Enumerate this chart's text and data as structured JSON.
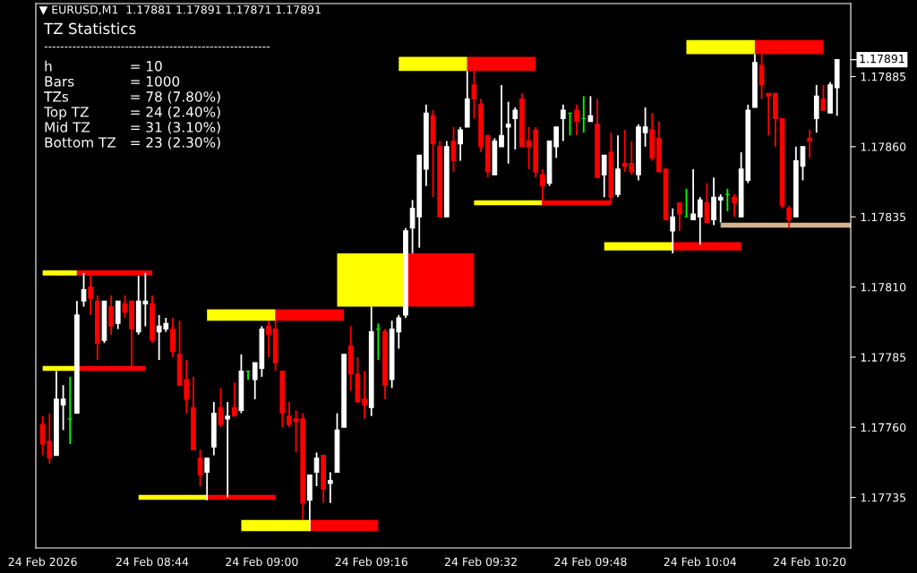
{
  "chart_data": {
    "type": "candlestick",
    "title": "▼ EURUSD,M1  1.17881 1.17891 1.17871 1.17891",
    "annotations": [
      "TZ Statistics",
      "--------------------------------------------------------",
      "h",
      "= 10",
      "Bars",
      "= 1000",
      "TZs",
      "= 78 (7.80%)",
      "Top TZ",
      "= 24 (2.40%)",
      "Mid TZ",
      "= 31 (3.10%)",
      "Bottom TZ",
      "= 23 (2.30%)"
    ],
    "x": [
      "2026-02-24T08:28",
      "2026-02-24T08:29",
      "2026-02-24T08:30",
      "2026-02-24T08:31",
      "2026-02-24T08:32",
      "2026-02-24T08:33",
      "2026-02-24T08:34",
      "2026-02-24T08:35",
      "2026-02-24T08:36",
      "2026-02-24T08:37",
      "2026-02-24T08:38",
      "2026-02-24T08:39",
      "2026-02-24T08:40",
      "2026-02-24T08:41",
      "2026-02-24T08:42",
      "2026-02-24T08:43",
      "2026-02-24T08:44",
      "2026-02-24T08:45",
      "2026-02-24T08:46",
      "2026-02-24T08:47",
      "2026-02-24T08:48",
      "2026-02-24T08:49",
      "2026-02-24T08:50",
      "2026-02-24T08:51",
      "2026-02-24T08:52",
      "2026-02-24T08:53",
      "2026-02-24T08:54",
      "2026-02-24T08:55",
      "2026-02-24T08:56",
      "2026-02-24T08:57",
      "2026-02-24T08:58",
      "2026-02-24T08:59",
      "2026-02-24T09:00",
      "2026-02-24T09:01",
      "2026-02-24T09:02",
      "2026-02-24T09:03",
      "2026-02-24T09:04",
      "2026-02-24T09:05",
      "2026-02-24T09:06",
      "2026-02-24T09:07",
      "2026-02-24T09:08",
      "2026-02-24T09:09",
      "2026-02-24T09:10",
      "2026-02-24T09:11",
      "2026-02-24T09:12",
      "2026-02-24T09:13",
      "2026-02-24T09:14",
      "2026-02-24T09:15",
      "2026-02-24T09:16",
      "2026-02-24T09:17",
      "2026-02-24T09:18",
      "2026-02-24T09:19",
      "2026-02-24T09:20",
      "2026-02-24T09:21",
      "2026-02-24T09:22",
      "2026-02-24T09:23",
      "2026-02-24T09:24",
      "2026-02-24T09:25",
      "2026-02-24T09:26",
      "2026-02-24T09:27",
      "2026-02-24T09:28",
      "2026-02-24T09:29",
      "2026-02-24T09:30",
      "2026-02-24T09:31",
      "2026-02-24T09:32",
      "2026-02-24T09:33",
      "2026-02-24T09:34",
      "2026-02-24T09:35",
      "2026-02-24T09:36",
      "2026-02-24T09:37",
      "2026-02-24T09:38",
      "2026-02-24T09:39",
      "2026-02-24T09:40",
      "2026-02-24T09:41",
      "2026-02-24T09:42",
      "2026-02-24T09:43",
      "2026-02-24T09:44",
      "2026-02-24T09:45",
      "2026-02-24T09:46",
      "2026-02-24T09:47",
      "2026-02-24T09:48",
      "2026-02-24T09:49",
      "2026-02-24T09:50",
      "2026-02-24T09:51",
      "2026-02-24T09:52",
      "2026-02-24T09:53",
      "2026-02-24T09:54",
      "2026-02-24T09:55",
      "2026-02-24T09:56",
      "2026-02-24T09:57",
      "2026-02-24T09:58",
      "2026-02-24T09:59",
      "2026-02-24T10:00",
      "2026-02-24T10:01",
      "2026-02-24T10:02",
      "2026-02-24T10:03",
      "2026-02-24T10:04",
      "2026-02-24T10:05",
      "2026-02-24T10:06",
      "2026-02-24T10:07",
      "2026-02-24T10:08",
      "2026-02-24T10:09",
      "2026-02-24T10:10",
      "2026-02-24T10:11",
      "2026-02-24T10:12",
      "2026-02-24T10:13",
      "2026-02-24T10:14",
      "2026-02-24T10:15",
      "2026-02-24T10:16",
      "2026-02-24T10:17",
      "2026-02-24T10:18",
      "2026-02-24T10:19",
      "2026-02-24T10:20",
      "2026-02-24T10:21",
      "2026-02-24T10:22",
      "2026-02-24T10:23",
      "2026-02-24T10:24"
    ],
    "ohlc": [
      [
        1.17761,
        1.17764,
        1.1775,
        1.17754
      ],
      [
        1.17755,
        1.17765,
        1.17747,
        1.17749
      ],
      [
        1.1775,
        1.1778,
        1.1775,
        1.1777
      ],
      [
        1.17768,
        1.17775,
        1.17759,
        1.1777
      ],
      [
        1.17763,
        1.17778,
        1.17754,
        1.17763
      ],
      [
        1.17765,
        1.17805,
        1.17765,
        1.178
      ],
      [
        1.17805,
        1.17815,
        1.17803,
        1.17809
      ],
      [
        1.1781,
        1.17814,
        1.178,
        1.17806
      ],
      [
        1.17805,
        1.17807,
        1.17784,
        1.1779
      ],
      [
        1.17791,
        1.17805,
        1.1779,
        1.17805
      ],
      [
        1.17803,
        1.17807,
        1.17793,
        1.17796
      ],
      [
        1.17797,
        1.17805,
        1.17795,
        1.17805
      ],
      [
        1.17804,
        1.17807,
        1.17799,
        1.17801
      ],
      [
        1.17805,
        1.17805,
        1.17781,
        1.17795
      ],
      [
        1.17794,
        1.17814,
        1.17793,
        1.17805
      ],
      [
        1.17804,
        1.17815,
        1.17796,
        1.17805
      ],
      [
        1.17804,
        1.17807,
        1.1779,
        1.17791
      ],
      [
        1.17794,
        1.178,
        1.17784,
        1.17796
      ],
      [
        1.17795,
        1.17799,
        1.17794,
        1.17797
      ],
      [
        1.17795,
        1.17799,
        1.17785,
        1.17787
      ],
      [
        1.17786,
        1.17798,
        1.17775,
        1.17775
      ],
      [
        1.17777,
        1.17784,
        1.17765,
        1.1777
      ],
      [
        1.17767,
        1.17778,
        1.17752,
        1.17752
      ],
      [
        1.17749,
        1.17752,
        1.17739,
        1.17743
      ],
      [
        1.17744,
        1.17749,
        1.17734,
        1.17749
      ],
      [
        1.17753,
        1.17769,
        1.1775,
        1.17765
      ],
      [
        1.17767,
        1.17774,
        1.1776,
        1.17761
      ],
      [
        1.17763,
        1.17769,
        1.17735,
        1.17764
      ],
      [
        1.17767,
        1.17776,
        1.17764,
        1.17764
      ],
      [
        1.17766,
        1.17786,
        1.17765,
        1.1778
      ],
      [
        1.1778,
        1.1778,
        1.17777,
        1.1778
      ],
      [
        1.17777,
        1.17783,
        1.1777,
        1.17783
      ],
      [
        1.17781,
        1.17796,
        1.17778,
        1.17795
      ],
      [
        1.17796,
        1.17798,
        1.17785,
        1.17793
      ],
      [
        1.17795,
        1.17798,
        1.1778,
        1.17783
      ],
      [
        1.1778,
        1.1778,
        1.1776,
        1.17765
      ],
      [
        1.17764,
        1.17769,
        1.1776,
        1.17761
      ],
      [
        1.17763,
        1.17766,
        1.17751,
        1.17762
      ],
      [
        1.17763,
        1.17765,
        1.17727,
        1.17733
      ],
      [
        1.17734,
        1.17743,
        1.17723,
        1.17743
      ],
      [
        1.17744,
        1.17751,
        1.17739,
        1.17749
      ],
      [
        1.1775,
        1.1775,
        1.17733,
        1.17738
      ],
      [
        1.1774,
        1.17744,
        1.17733,
        1.17741
      ],
      [
        1.17744,
        1.17765,
        1.17744,
        1.17759
      ],
      [
        1.1776,
        1.17786,
        1.1776,
        1.17786
      ],
      [
        1.17789,
        1.17796,
        1.17773,
        1.17779
      ],
      [
        1.17779,
        1.17785,
        1.17769,
        1.17769
      ],
      [
        1.1777,
        1.1778,
        1.17763,
        1.17768
      ],
      [
        1.17767,
        1.17803,
        1.17764,
        1.17794
      ],
      [
        1.17795,
        1.17797,
        1.17784,
        1.17795
      ],
      [
        1.17794,
        1.17795,
        1.1777,
        1.17775
      ],
      [
        1.17777,
        1.17798,
        1.17774,
        1.17795
      ],
      [
        1.17794,
        1.178,
        1.17788,
        1.17799
      ],
      [
        1.178,
        1.17831,
        1.17799,
        1.1783
      ],
      [
        1.17831,
        1.17841,
        1.17822,
        1.17838
      ],
      [
        1.17835,
        1.17857,
        1.17824,
        1.17857
      ],
      [
        1.17852,
        1.17875,
        1.17846,
        1.17872
      ],
      [
        1.17871,
        1.17873,
        1.17842,
        1.17861
      ],
      [
        1.1786,
        1.17862,
        1.17835,
        1.17835
      ],
      [
        1.17835,
        1.17862,
        1.17835,
        1.1786
      ],
      [
        1.17862,
        1.17867,
        1.17851,
        1.17855
      ],
      [
        1.17861,
        1.17867,
        1.17855,
        1.17866
      ],
      [
        1.17867,
        1.17887,
        1.17867,
        1.17877
      ],
      [
        1.17882,
        1.17887,
        1.1787,
        1.17877
      ],
      [
        1.17875,
        1.17877,
        1.17858,
        1.1786
      ],
      [
        1.17864,
        1.17864,
        1.17849,
        1.17851
      ],
      [
        1.1785,
        1.17863,
        1.1785,
        1.17862
      ],
      [
        1.1786,
        1.17882,
        1.1786,
        1.17864
      ],
      [
        1.17867,
        1.17876,
        1.17854,
        1.17868
      ],
      [
        1.1787,
        1.17874,
        1.17859,
        1.17873
      ],
      [
        1.17877,
        1.17879,
        1.1786,
        1.1786
      ],
      [
        1.17862,
        1.17867,
        1.17852,
        1.1786
      ],
      [
        1.17866,
        1.17867,
        1.17849,
        1.17851
      ],
      [
        1.1785,
        1.17852,
        1.17839,
        1.17846
      ],
      [
        1.17847,
        1.17862,
        1.17846,
        1.17862
      ],
      [
        1.1786,
        1.17867,
        1.17856,
        1.17867
      ],
      [
        1.1787,
        1.17875,
        1.17862,
        1.17873
      ],
      [
        1.17872,
        1.17872,
        1.17864,
        1.17872
      ],
      [
        1.17873,
        1.17875,
        1.17864,
        1.17869
      ],
      [
        1.1787,
        1.17878,
        1.17865,
        1.1787
      ],
      [
        1.17869,
        1.17878,
        1.17869,
        1.17871
      ],
      [
        1.17868,
        1.17877,
        1.17849,
        1.17849
      ],
      [
        1.1785,
        1.17857,
        1.17842,
        1.17857
      ],
      [
        1.17858,
        1.17865,
        1.1784,
        1.17842
      ],
      [
        1.17843,
        1.17864,
        1.17842,
        1.17852
      ],
      [
        1.17854,
        1.17866,
        1.17851,
        1.17853
      ],
      [
        1.17854,
        1.17862,
        1.1785,
        1.17851
      ],
      [
        1.1785,
        1.17868,
        1.17848,
        1.17867
      ],
      [
        1.17865,
        1.17874,
        1.1786,
        1.17867
      ],
      [
        1.17866,
        1.17872,
        1.17855,
        1.17856
      ],
      [
        1.17863,
        1.17869,
        1.17851,
        1.17851
      ],
      [
        1.17852,
        1.17852,
        1.17834,
        1.17834
      ],
      [
        1.1783,
        1.17838,
        1.17822,
        1.17835
      ],
      [
        1.1784,
        1.1784,
        1.1783,
        1.17836
      ],
      [
        1.17835,
        1.17845,
        1.17835,
        1.17835
      ],
      [
        1.17834,
        1.17852,
        1.17834,
        1.17836
      ],
      [
        1.17835,
        1.17842,
        1.17825,
        1.17841
      ],
      [
        1.1784,
        1.17847,
        1.17833,
        1.17833
      ],
      [
        1.17834,
        1.17849,
        1.17832,
        1.17842
      ],
      [
        1.17841,
        1.17843,
        1.17833,
        1.17842
      ],
      [
        1.17843,
        1.17845,
        1.17837,
        1.17843
      ],
      [
        1.17842,
        1.17843,
        1.17835,
        1.1784
      ],
      [
        1.17835,
        1.17858,
        1.17835,
        1.17852
      ],
      [
        1.17848,
        1.17875,
        1.17847,
        1.17873
      ],
      [
        1.17874,
        1.17893,
        1.17874,
        1.1789
      ],
      [
        1.17889,
        1.17893,
        1.17877,
        1.17882
      ],
      [
        1.17879,
        1.17879,
        1.17864,
        1.17878
      ],
      [
        1.17879,
        1.17879,
        1.1786,
        1.1787
      ],
      [
        1.1787,
        1.1787,
        1.17838,
        1.17839
      ],
      [
        1.17838,
        1.17839,
        1.17831,
        1.17834
      ],
      [
        1.17835,
        1.1786,
        1.17835,
        1.17855
      ],
      [
        1.17853,
        1.1786,
        1.17848,
        1.1786
      ],
      [
        1.17863,
        1.17866,
        1.17856,
        1.17862
      ],
      [
        1.1787,
        1.17882,
        1.17865,
        1.17878
      ],
      [
        1.17877,
        1.17882,
        1.17873,
        1.17873
      ],
      [
        1.17872,
        1.17883,
        1.17872,
        1.17882
      ],
      [
        1.17881,
        1.17891,
        1.17871,
        1.17891
      ]
    ],
    "colors": [
      "#ff0000",
      "#ff0000",
      "#ffffff",
      "#ffffff",
      "#00ff00",
      "#ffffff",
      "#ffffff",
      "#ff0000",
      "#ff0000",
      "#ffffff",
      "#ff0000",
      "#ffffff",
      "#ff0000",
      "#ff0000",
      "#ffffff",
      "#ffffff",
      "#ff0000",
      "#ffffff",
      "#ffffff",
      "#ff0000",
      "#ff0000",
      "#ff0000",
      "#ff0000",
      "#ff0000",
      "#ffffff",
      "#ffffff",
      "#ff0000",
      "#ffffff",
      "#ff0000",
      "#ffffff",
      "#00ff00",
      "#ffffff",
      "#ffffff",
      "#ff0000",
      "#ff0000",
      "#ff0000",
      "#ff0000",
      "#ff0000",
      "#ff0000",
      "#ffffff",
      "#ffffff",
      "#ff0000",
      "#ffffff",
      "#ffffff",
      "#ffffff",
      "#ff0000",
      "#ff0000",
      "#ff0000",
      "#ffffff",
      "#00ff00",
      "#ff0000",
      "#ffffff",
      "#ffffff",
      "#ffffff",
      "#ffffff",
      "#ffffff",
      "#ffffff",
      "#ff0000",
      "#ff0000",
      "#ffffff",
      "#ff0000",
      "#ffffff",
      "#ffffff",
      "#ff0000",
      "#ff0000",
      "#ff0000",
      "#ffffff",
      "#ffffff",
      "#ffffff",
      "#ffffff",
      "#ff0000",
      "#ff0000",
      "#ff0000",
      "#ff0000",
      "#ffffff",
      "#ffffff",
      "#ffffff",
      "#00ff00",
      "#ff0000",
      "#00ff00",
      "#ffffff",
      "#ff0000",
      "#ffffff",
      "#ff0000",
      "#ffffff",
      "#ff0000",
      "#ff0000",
      "#ffffff",
      "#ffffff",
      "#ff0000",
      "#ff0000",
      "#ff0000",
      "#ffffff",
      "#ff0000",
      "#00ff00",
      "#ffffff",
      "#ffffff",
      "#ff0000",
      "#ffffff",
      "#ffffff",
      "#00ff00",
      "#ff0000",
      "#ffffff",
      "#ffffff",
      "#ffffff",
      "#ff0000",
      "#ff0000",
      "#ff0000",
      "#ff0000",
      "#ff0000",
      "#ffffff",
      "#ffffff",
      "#ff0000",
      "#ffffff",
      "#ff0000",
      "#ffffff",
      "#ffffff"
    ],
    "series": [
      {
        "type": "line",
        "x": [
          "2026-02-24T08:28",
          "2026-02-24T08:33"
        ],
        "values": [
          1.17815,
          1.17815
        ],
        "color": "#ffff00"
      },
      {
        "type": "line",
        "x": [
          "2026-02-24T08:33",
          "2026-02-24T08:44"
        ],
        "values": [
          1.17815,
          1.17815
        ],
        "color": "#ff0000"
      },
      {
        "type": "line",
        "x": [
          "2026-02-24T08:28",
          "2026-02-24T08:33"
        ],
        "values": [
          1.17781,
          1.17781
        ],
        "color": "#ffff00"
      },
      {
        "type": "line",
        "x": [
          "2026-02-24T08:33",
          "2026-02-24T08:43"
        ],
        "values": [
          1.17781,
          1.17781
        ],
        "color": "#ff0000"
      },
      {
        "type": "line",
        "x": [
          "2026-02-24T08:42",
          "2026-02-24T08:52"
        ],
        "values": [
          1.17735,
          1.17735
        ],
        "color": "#ffff00"
      },
      {
        "type": "line",
        "x": [
          "2026-02-24T08:52",
          "2026-02-24T09:02"
        ],
        "values": [
          1.17735,
          1.17735
        ],
        "color": "#ff0000"
      },
      {
        "type": "line",
        "x": [
          "2026-02-24T09:31",
          "2026-02-24T09:41"
        ],
        "values": [
          1.1784,
          1.1784
        ],
        "color": "#ffff00"
      },
      {
        "type": "line",
        "x": [
          "2026-02-24T09:41",
          "2026-02-24T09:51"
        ],
        "values": [
          1.1784,
          1.1784
        ],
        "color": "#ff0000"
      },
      {
        "type": "bar",
        "x": [
          "2026-02-24T08:57",
          "2026-02-24T09:07"
        ],
        "base": [
          1.17798,
          1.17798
        ],
        "values": [
          4e-05,
          4e-05
        ],
        "colors": [
          "#ffff00",
          "#ff0000"
        ]
      },
      {
        "type": "bar",
        "x": [
          "2026-02-24T09:02",
          "2026-02-24T09:12"
        ],
        "base": [
          1.17723,
          1.17723
        ],
        "values": [
          4e-05,
          4e-05
        ],
        "colors": [
          "#ffff00",
          "#ff0000"
        ]
      },
      {
        "type": "bar",
        "x": [
          "2026-02-24T09:16",
          "2026-02-24T09:26"
        ],
        "base": [
          1.17803,
          1.17803
        ],
        "values": [
          0.00019,
          0.00019
        ],
        "colors": [
          "#ffff00",
          "#ff0000"
        ]
      },
      {
        "type": "bar",
        "x": [
          "2026-02-24T09:25",
          "2026-02-24T09:35"
        ],
        "base": [
          1.17887,
          1.17887
        ],
        "values": [
          5e-05,
          5e-05
        ],
        "colors": [
          "#ffff00",
          "#ff0000"
        ]
      },
      {
        "type": "bar",
        "x": [
          "2026-02-24T09:55",
          "2026-02-24T10:05"
        ],
        "base": [
          1.17823,
          1.17823
        ],
        "values": [
          3e-05,
          3e-05
        ],
        "colors": [
          "#ffff00",
          "#ff0000"
        ]
      },
      {
        "type": "bar",
        "x": [
          "2026-02-24T10:07",
          "2026-02-24T10:17"
        ],
        "base": [
          1.17893,
          1.17893
        ],
        "values": [
          5e-05,
          5e-05
        ],
        "colors": [
          "#ffff00",
          "#ff0000"
        ]
      },
      {
        "type": "line",
        "x": [
          "2026-02-24T10:07",
          "2026-02-24T10:26"
        ],
        "values": [
          1.17832,
          1.17832
        ],
        "color": "#d2b48c"
      }
    ],
    "ref_lines": [
      {
        "axis": "y",
        "value": 1.17891,
        "label": "1.17891"
      }
    ],
    "xlim": [
      "2026-02-24T08:27",
      "2026-02-24T10:26"
    ],
    "xticks": [
      {
        "value": "2026-02-24T08:28",
        "label": "24 Feb 2026"
      },
      {
        "value": "2026-02-24T08:44",
        "label": "24 Feb 08:44"
      },
      {
        "value": "2026-02-24T09:00",
        "label": "24 Feb 09:00"
      },
      {
        "value": "2026-02-24T09:16",
        "label": "24 Feb 09:16"
      },
      {
        "value": "2026-02-24T09:32",
        "label": "24 Feb 09:32"
      },
      {
        "value": "2026-02-24T09:48",
        "label": "24 Feb 09:48"
      },
      {
        "value": "2026-02-24T10:04",
        "label": "24 Feb 10:04"
      },
      {
        "value": "2026-02-24T10:20",
        "label": "24 Feb 10:20"
      }
    ],
    "ylim": [
      1.17717,
      1.17911
    ],
    "yticks": [
      {
        "value": 1.17735,
        "label": "1.17735"
      },
      {
        "value": 1.1776,
        "label": "1.17760"
      },
      {
        "value": 1.17785,
        "label": "1.17785"
      },
      {
        "value": 1.1781,
        "label": "1.17810"
      },
      {
        "value": 1.17835,
        "label": "1.17835"
      },
      {
        "value": 1.1786,
        "label": "1.17860"
      },
      {
        "value": 1.17885,
        "label": "1.17885"
      }
    ]
  }
}
